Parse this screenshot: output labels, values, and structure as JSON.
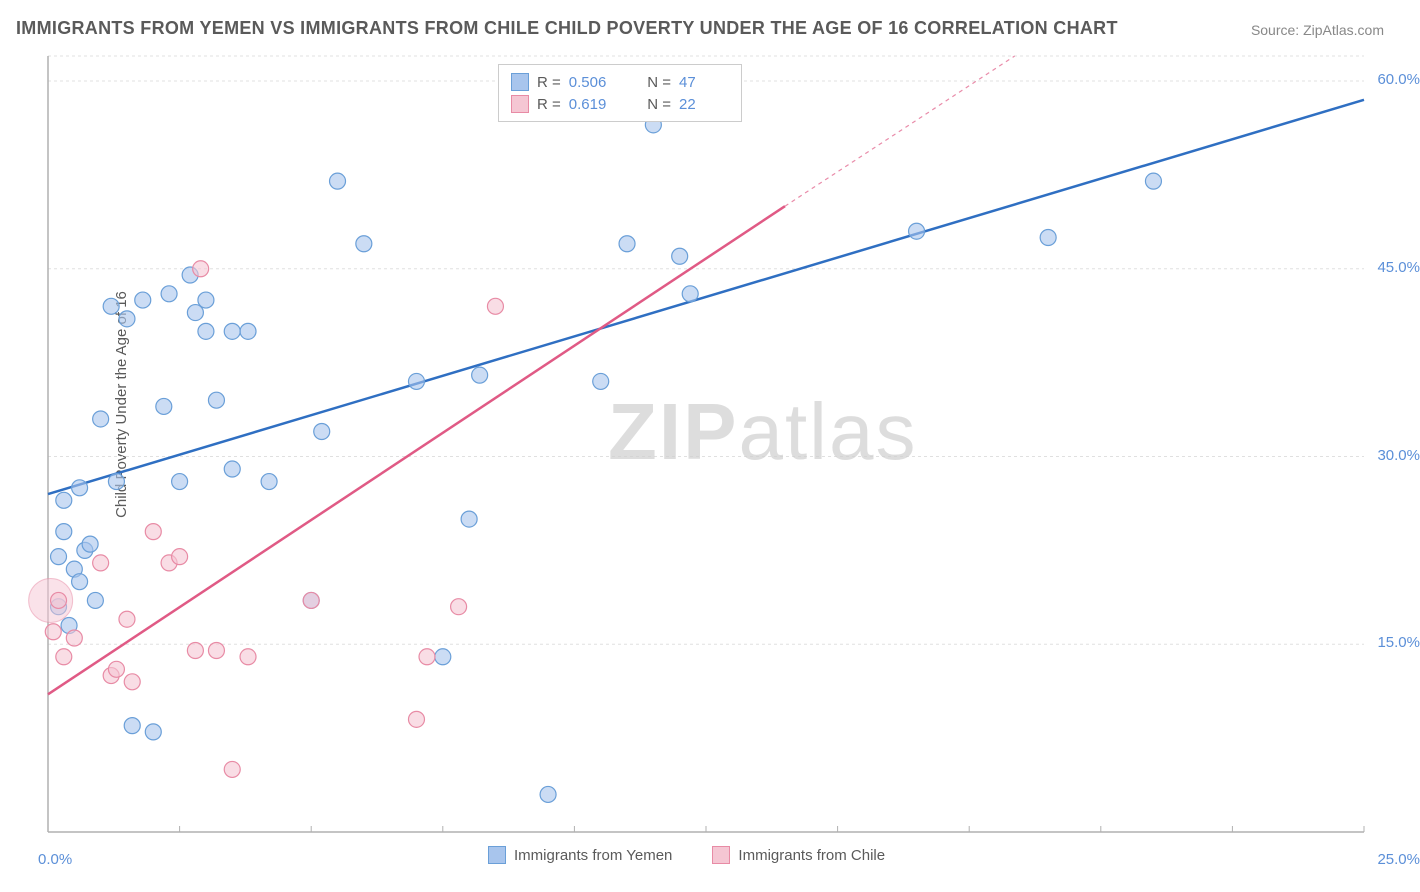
{
  "title": "IMMIGRANTS FROM YEMEN VS IMMIGRANTS FROM CHILE CHILD POVERTY UNDER THE AGE OF 16 CORRELATION CHART",
  "source": "Source: ZipAtlas.com",
  "watermark": {
    "bold": "ZIP",
    "light": "atlas"
  },
  "chart": {
    "type": "scatter",
    "y_label": "Child Poverty Under the Age of 16",
    "xlim": [
      0,
      25
    ],
    "ylim": [
      0,
      62
    ],
    "x_ticks": [
      {
        "value": 0,
        "label": "0.0%"
      },
      {
        "value": 25,
        "label": "25.0%"
      }
    ],
    "y_ticks": [
      {
        "value": 15,
        "label": "15.0%"
      },
      {
        "value": 30,
        "label": "30.0%"
      },
      {
        "value": 45,
        "label": "45.0%"
      },
      {
        "value": 60,
        "label": "60.0%"
      }
    ],
    "grid_color": "#e0e0e0",
    "grid_dash": "3,3",
    "background_color": "#ffffff",
    "axis_color": "#b0b0b0",
    "point_radius": 8,
    "point_opacity": 0.6,
    "line_width": 2.5,
    "series": [
      {
        "name": "Immigrants from Yemen",
        "color_fill": "#a8c5ed",
        "color_stroke": "#6a9fd8",
        "line_color": "#2f6fc2",
        "r_label": "R = ",
        "r_value": "0.506",
        "n_label": "N = ",
        "n_value": "47",
        "regression": {
          "x1": 0,
          "y1": 27,
          "x2": 25,
          "y2": 58.5
        },
        "points": [
          [
            0.2,
            22
          ],
          [
            0.3,
            24
          ],
          [
            0.3,
            26.5
          ],
          [
            0.5,
            21
          ],
          [
            0.6,
            27.5
          ],
          [
            0.7,
            22.5
          ],
          [
            0.8,
            23
          ],
          [
            0.9,
            18.5
          ],
          [
            1.0,
            33
          ],
          [
            1.2,
            42
          ],
          [
            1.3,
            28
          ],
          [
            1.5,
            41
          ],
          [
            1.6,
            8.5
          ],
          [
            1.8,
            42.5
          ],
          [
            2.0,
            8
          ],
          [
            2.2,
            34
          ],
          [
            2.3,
            43
          ],
          [
            2.5,
            28
          ],
          [
            2.7,
            44.5
          ],
          [
            2.8,
            41.5
          ],
          [
            3.0,
            42.5
          ],
          [
            3.0,
            40
          ],
          [
            3.2,
            34.5
          ],
          [
            3.5,
            40
          ],
          [
            3.5,
            29
          ],
          [
            3.8,
            40
          ],
          [
            4.2,
            28
          ],
          [
            5.0,
            18.5
          ],
          [
            5.2,
            32
          ],
          [
            5.5,
            52
          ],
          [
            6.0,
            47
          ],
          [
            7.0,
            36
          ],
          [
            7.5,
            14
          ],
          [
            8.0,
            25
          ],
          [
            8.2,
            36.5
          ],
          [
            9.5,
            3
          ],
          [
            10.5,
            36
          ],
          [
            11.0,
            47
          ],
          [
            11.5,
            56.5
          ],
          [
            12.0,
            46
          ],
          [
            12.2,
            43
          ],
          [
            16.5,
            48
          ],
          [
            19.0,
            47.5
          ],
          [
            21.0,
            52
          ],
          [
            0.4,
            16.5
          ],
          [
            0.6,
            20
          ],
          [
            0.2,
            18
          ]
        ]
      },
      {
        "name": "Immigrants from Chile",
        "color_fill": "#f5c6d3",
        "color_stroke": "#e88ba5",
        "line_color": "#e05a85",
        "r_label": "R = ",
        "r_value": "0.619",
        "n_label": "N = ",
        "n_value": "22",
        "regression": {
          "x1": 0,
          "y1": 11,
          "x2": 14,
          "y2": 50
        },
        "regression_extend": {
          "x1": 14,
          "y1": 50,
          "x2": 22,
          "y2": 72
        },
        "points": [
          [
            0.1,
            16
          ],
          [
            0.2,
            18.5
          ],
          [
            0.3,
            14
          ],
          [
            0.5,
            15.5
          ],
          [
            1.0,
            21.5
          ],
          [
            1.2,
            12.5
          ],
          [
            1.3,
            13
          ],
          [
            1.5,
            17
          ],
          [
            1.6,
            12
          ],
          [
            2.0,
            24
          ],
          [
            2.3,
            21.5
          ],
          [
            2.5,
            22
          ],
          [
            2.8,
            14.5
          ],
          [
            2.9,
            45
          ],
          [
            3.2,
            14.5
          ],
          [
            3.5,
            5
          ],
          [
            3.8,
            14
          ],
          [
            5.0,
            18.5
          ],
          [
            7.0,
            9
          ],
          [
            7.2,
            14
          ],
          [
            7.8,
            18
          ],
          [
            8.5,
            42
          ]
        ],
        "large_point": {
          "x": 0.05,
          "y": 18.5,
          "radius": 22
        }
      }
    ]
  }
}
